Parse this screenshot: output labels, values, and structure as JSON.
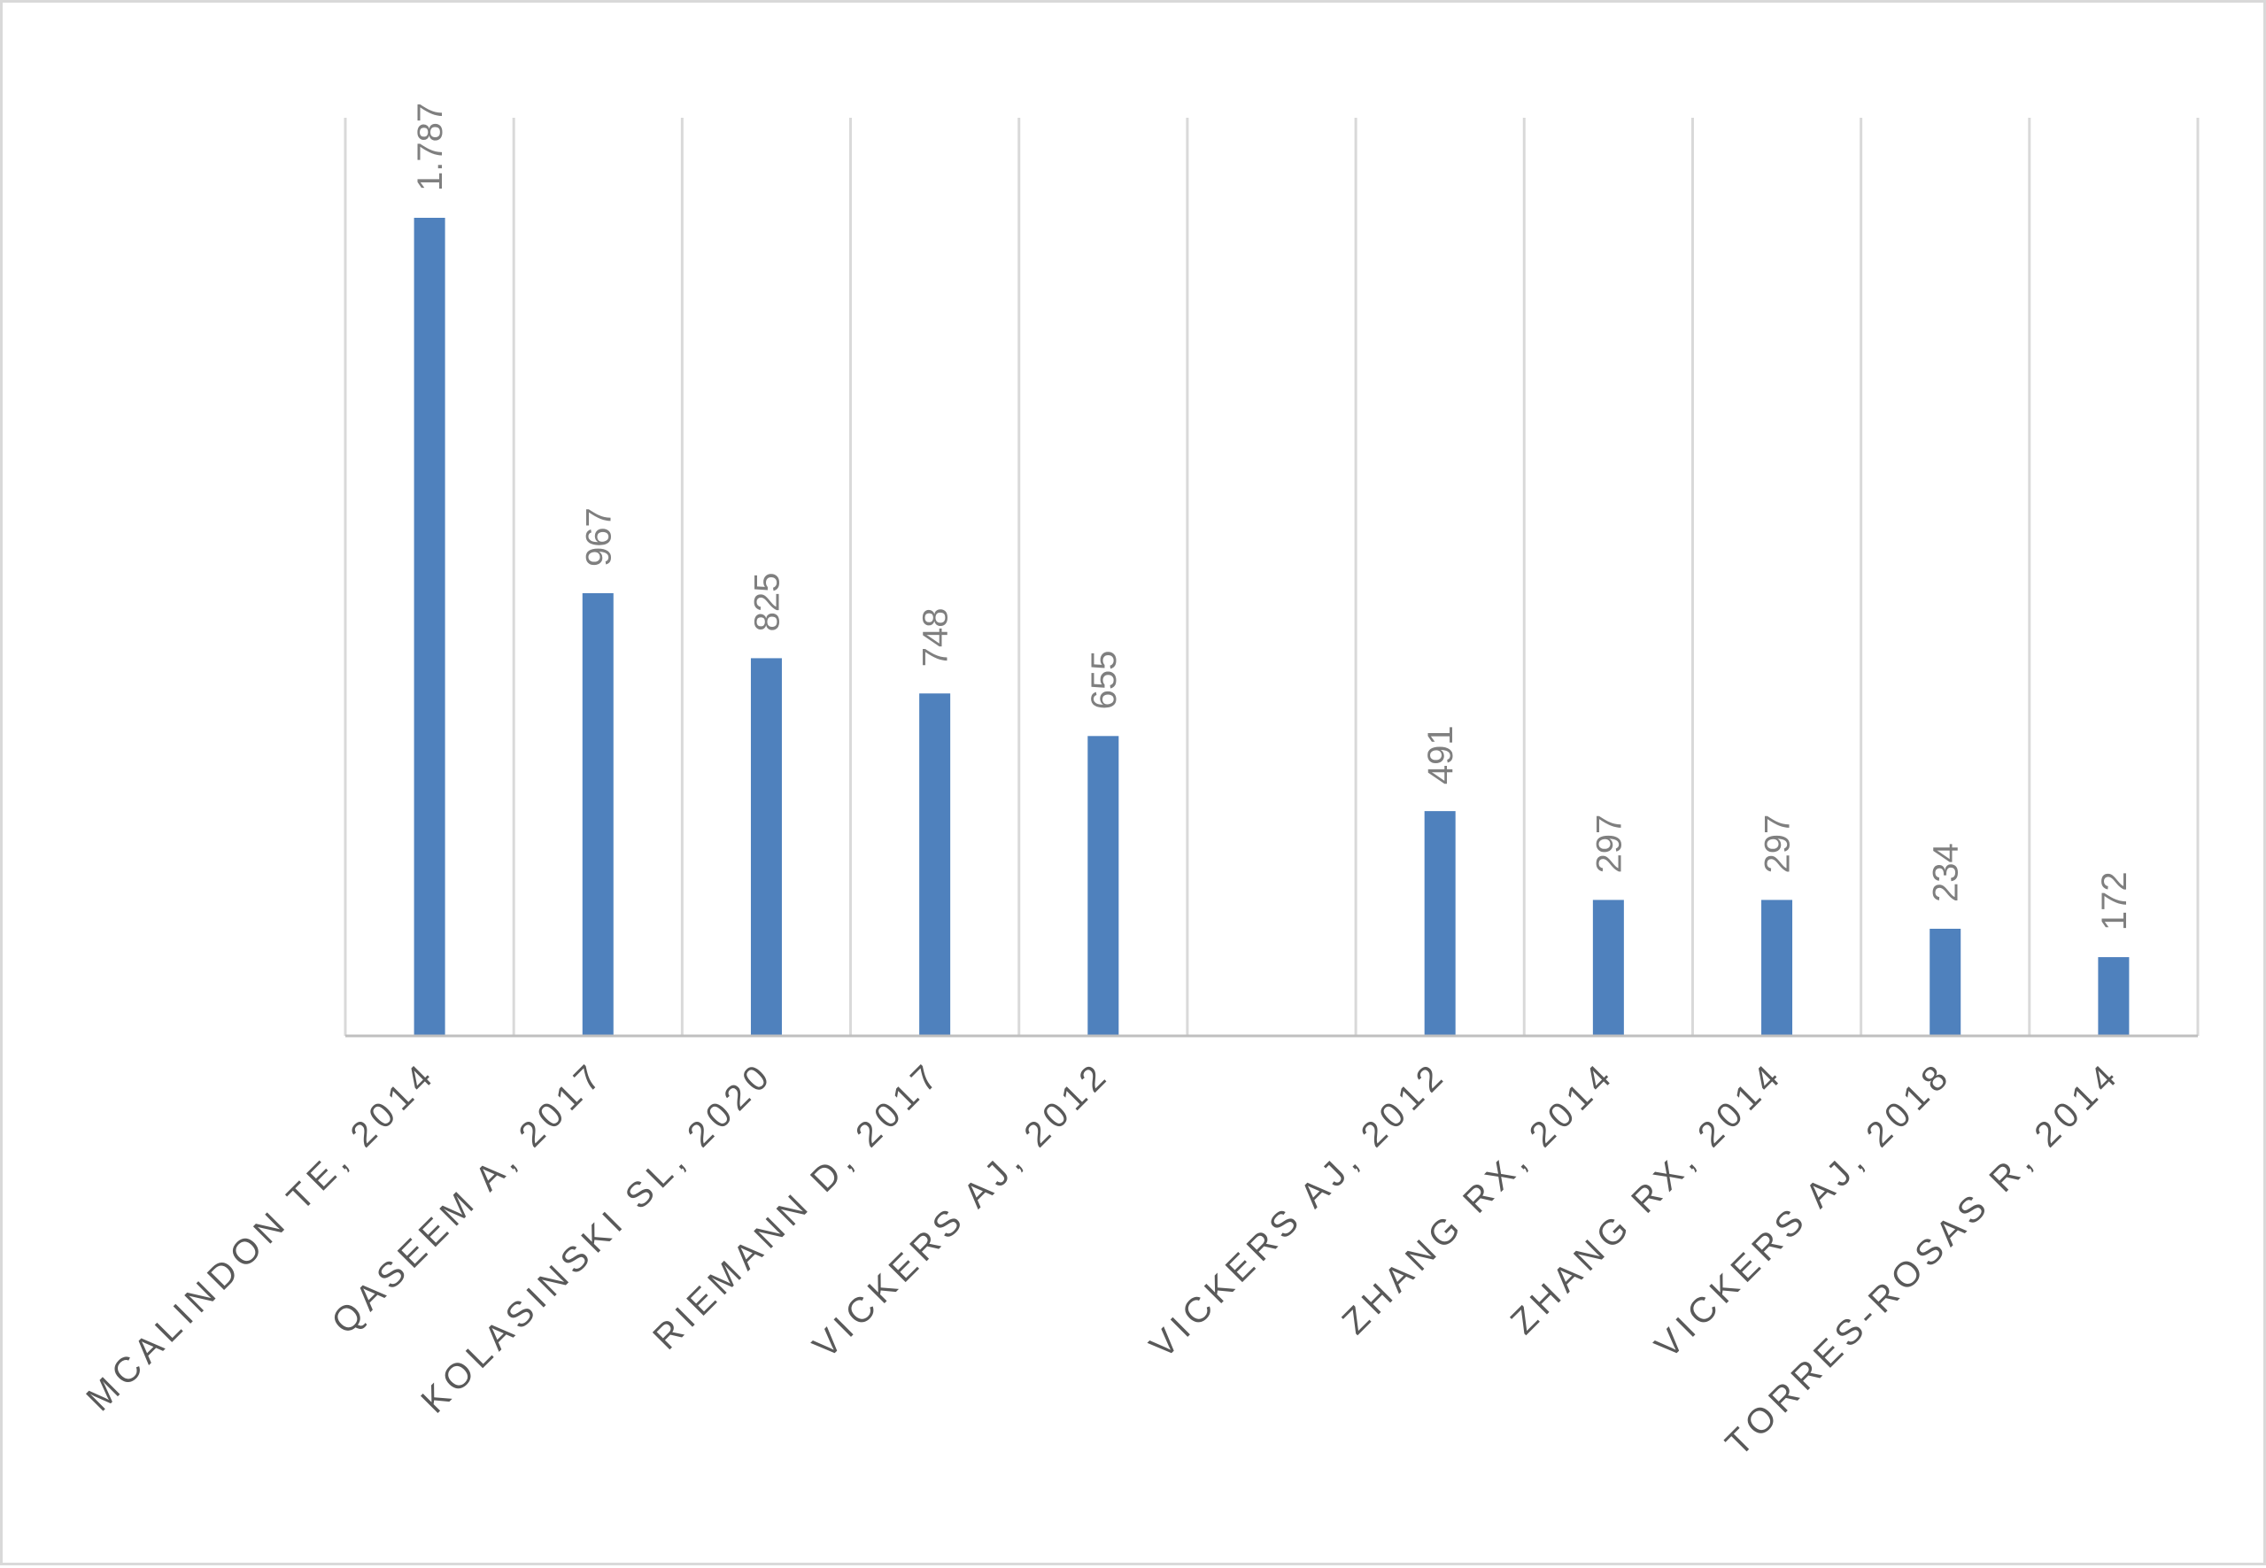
{
  "chart_data": {
    "type": "bar",
    "title": "",
    "xlabel": "",
    "ylabel": "",
    "categories": [
      "MCALINDON TE, 2014",
      "QASEEM A, 2017",
      "KOLASINSKI SL, 2020",
      "RIEMANN D, 2017",
      "VICKERS AJ, 2012",
      "",
      "VICKERS AJ, 2012",
      "ZHANG RX, 2014",
      "ZHANG RX, 2014",
      "VICKERS AJ, 2018",
      "TORRES-ROSAS R, 2014"
    ],
    "values": [
      1787,
      967,
      825,
      748,
      655,
      null,
      491,
      297,
      297,
      234,
      172
    ],
    "data_labels": [
      "1.787",
      "967",
      "825",
      "748",
      "655",
      "",
      "491",
      "297",
      "297",
      "234",
      "172"
    ],
    "ylim": [
      0,
      2000
    ],
    "grid": "vertical",
    "legend": "none",
    "bar_color": "#4f81bd"
  }
}
